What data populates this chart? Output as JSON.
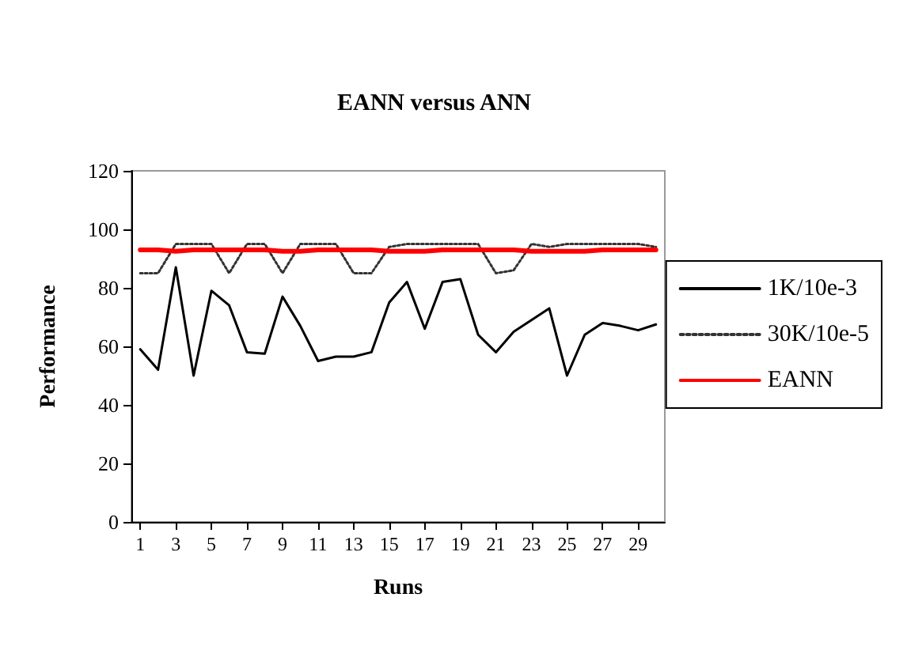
{
  "chart_data": {
    "type": "line",
    "title": "EANN versus ANN",
    "xlabel": "Runs",
    "ylabel": "Performance",
    "x": [
      1,
      2,
      3,
      4,
      5,
      6,
      7,
      8,
      9,
      10,
      11,
      12,
      13,
      14,
      15,
      16,
      17,
      18,
      19,
      20,
      21,
      22,
      23,
      24,
      25,
      26,
      27,
      28,
      29,
      30
    ],
    "xlim": [
      0.5,
      30.5
    ],
    "xticks": [
      1,
      3,
      5,
      7,
      9,
      11,
      13,
      15,
      17,
      19,
      21,
      23,
      25,
      27,
      29
    ],
    "series": [
      {
        "name": "1K/10e-3",
        "color": "#000000",
        "line_style": "solid",
        "values": [
          59,
          52,
          87,
          50,
          79,
          74,
          58,
          57.5,
          77,
          67,
          55,
          56.5,
          56.5,
          58,
          75,
          82,
          66,
          82,
          83,
          64,
          58,
          65,
          69,
          73,
          50,
          64,
          68,
          67,
          65.5,
          67.5
        ]
      },
      {
        "name": "30K/10e-5",
        "color": "#333333",
        "line_style": "dotted",
        "values": [
          85,
          85,
          95,
          95,
          95,
          85,
          95,
          95,
          85,
          95,
          95,
          95,
          85,
          85,
          94,
          95,
          95,
          95,
          95,
          95,
          85,
          86,
          95,
          94,
          95,
          95,
          95,
          95,
          95,
          94
        ]
      },
      {
        "name": "EANN",
        "color": "#ff0000",
        "line_style": "solid",
        "values": [
          93,
          93,
          92.5,
          93,
          93,
          93,
          93,
          93,
          92.5,
          92.5,
          93,
          93,
          93,
          93,
          92.5,
          92.5,
          92.5,
          93,
          93,
          93,
          93,
          93,
          92.5,
          92.5,
          92.5,
          92.5,
          93,
          93,
          93,
          93
        ]
      }
    ],
    "ylim": [
      0,
      120
    ],
    "yticks": [
      0,
      20,
      40,
      60,
      80,
      100,
      120
    ],
    "grid": false,
    "legend": "right",
    "marker": "none"
  }
}
